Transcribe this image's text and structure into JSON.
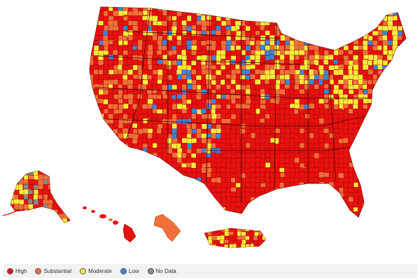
{
  "colors": {
    "high": "#e8120f",
    "substantial": "#f0703a",
    "moderate": "#f7ec3a",
    "low": "#3a86d8",
    "nodata": "#8a8a8a"
  },
  "legend": [
    {
      "key": "high",
      "label": "High",
      "color": "#e8120f"
    },
    {
      "key": "substantial",
      "label": "Substantial",
      "color": "#f0703a"
    },
    {
      "key": "moderate",
      "label": "Moderate",
      "color": "#f7ec3a"
    },
    {
      "key": "low",
      "label": "Low",
      "color": "#3a86d8"
    },
    {
      "key": "nodata",
      "label": "No Data",
      "color": "#8a8a8a"
    }
  ]
}
